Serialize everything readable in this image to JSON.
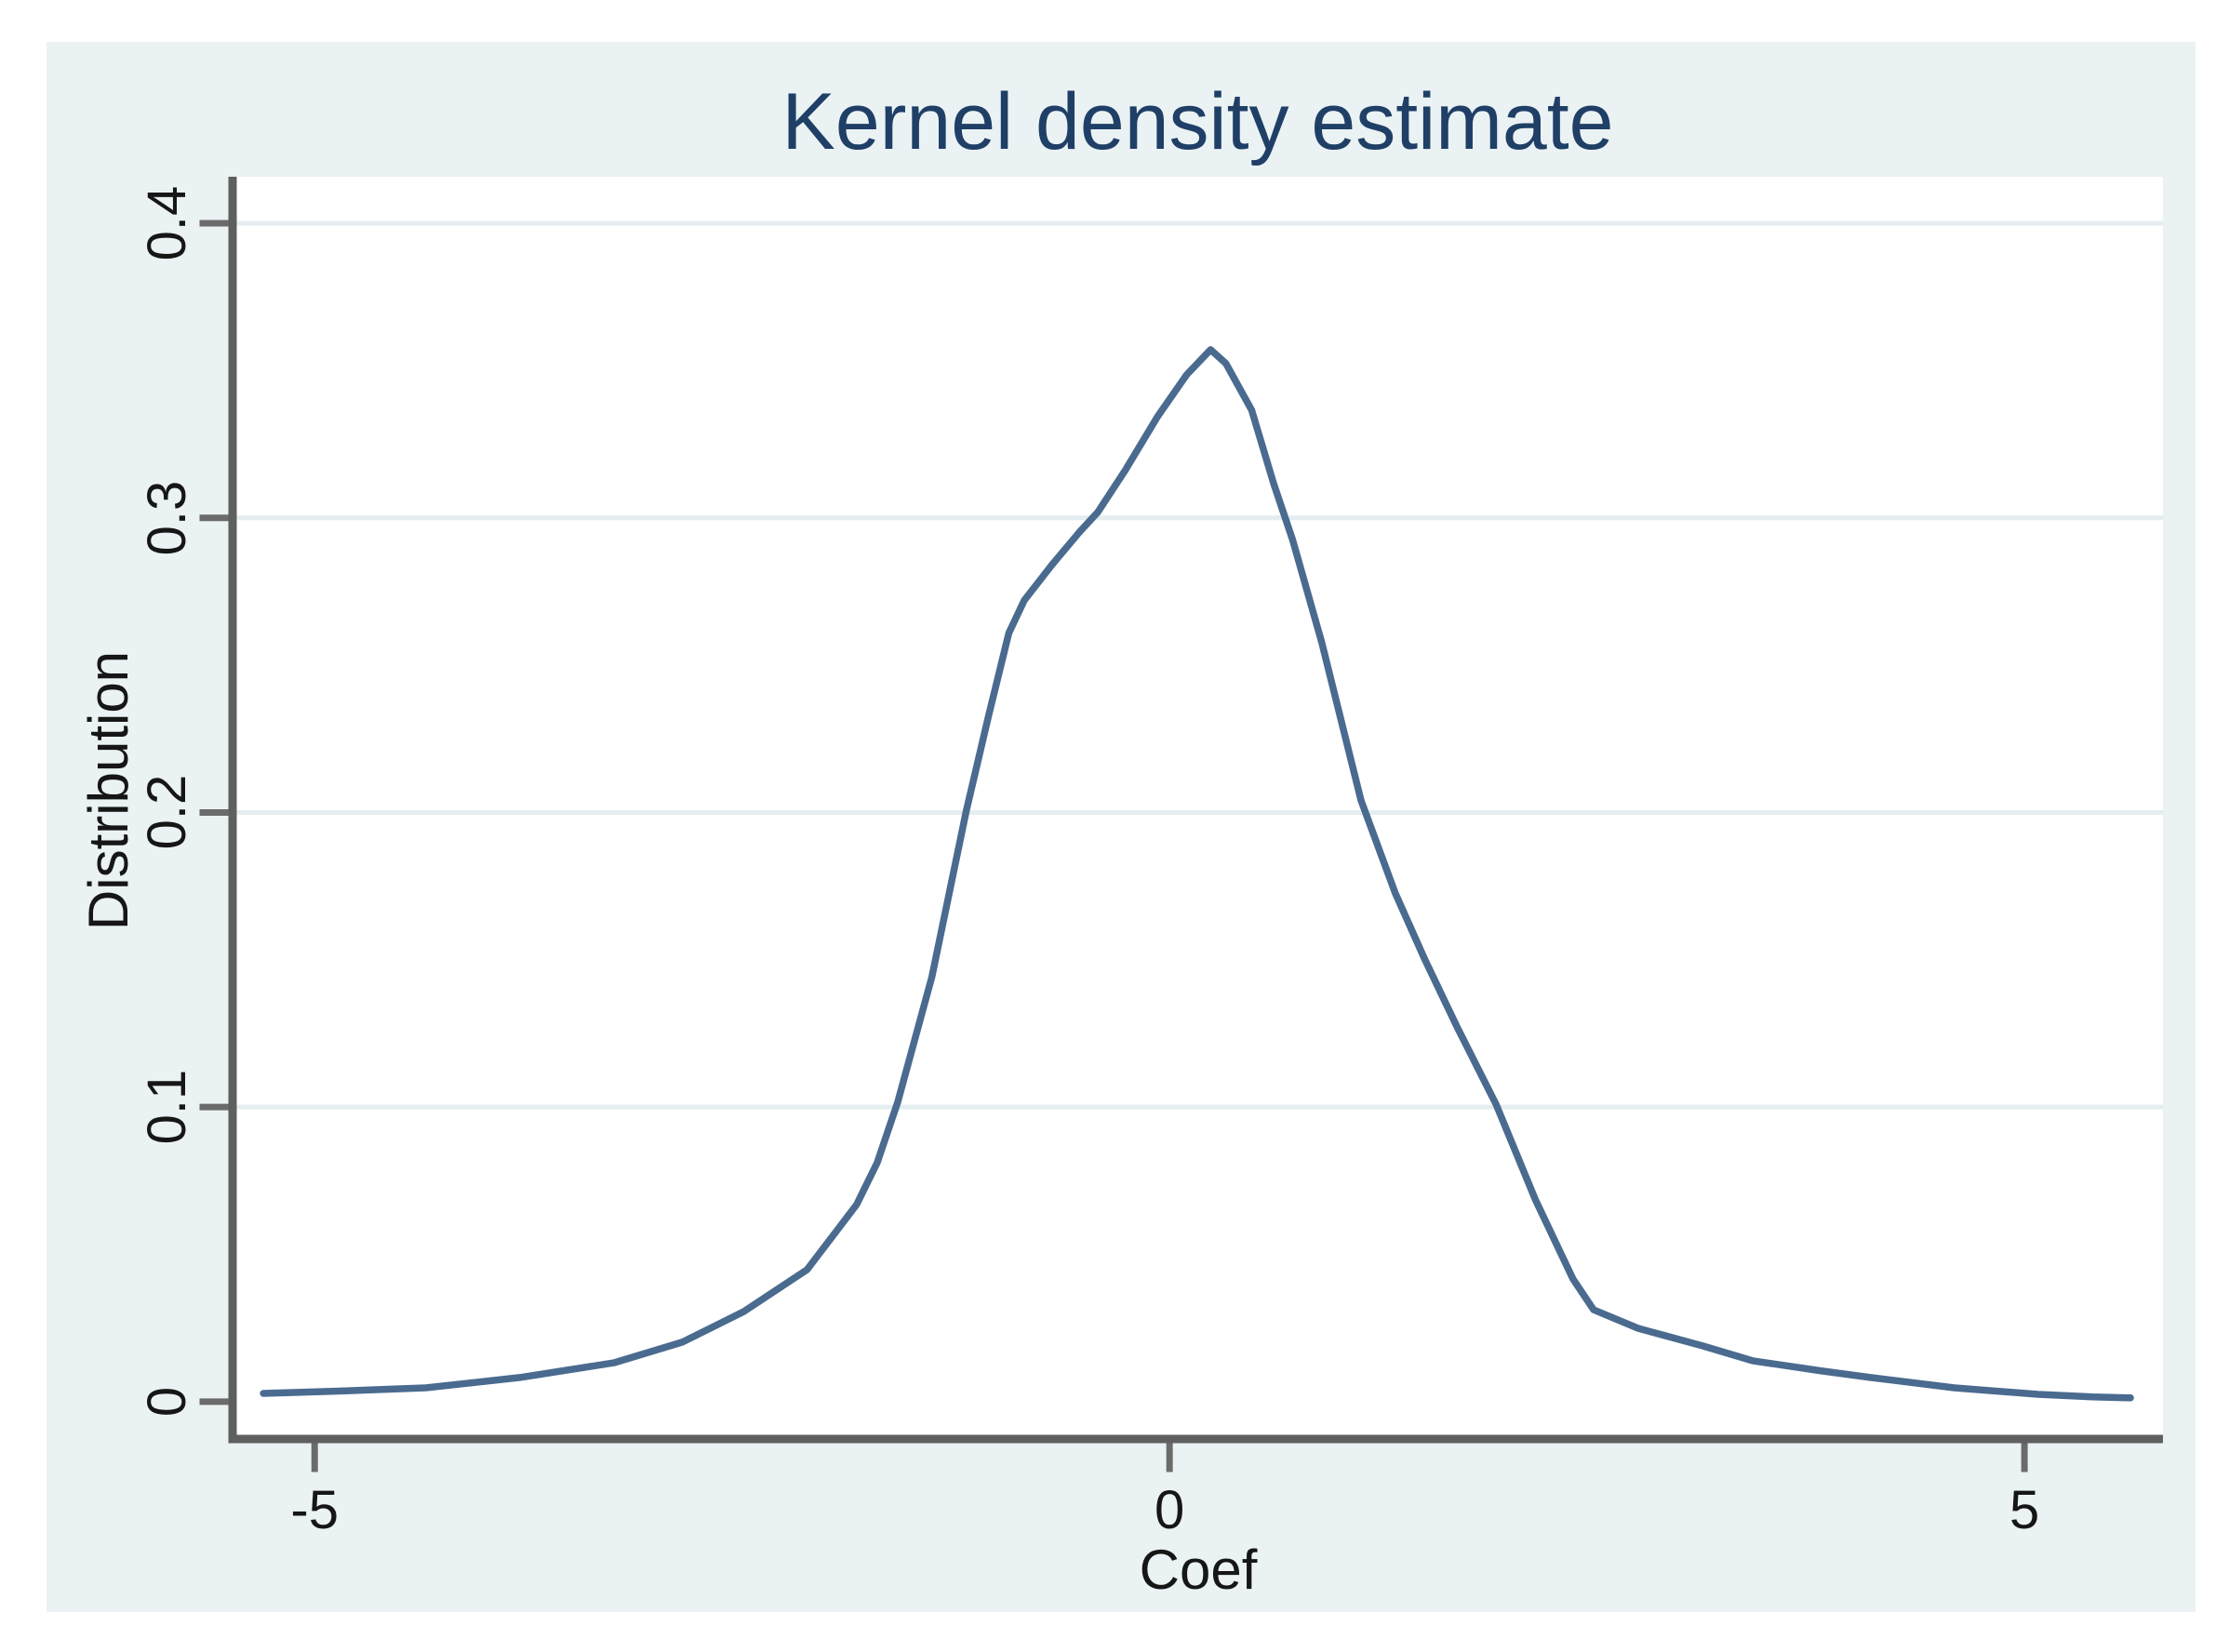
{
  "page": {
    "background_color": "#ffffff",
    "graph_background_color": "#eaf2f3",
    "plot_background_color": "#ffffff"
  },
  "graph": {
    "title": "Kernel density estimate",
    "title_color": "#1f3f66",
    "x_axis": {
      "label": "Coef"
    },
    "y_axis": {
      "label": "Distribution"
    },
    "axis_line_color": "#5f5f5f",
    "tick_color": "#6b6b6b",
    "gridline_color": "#e4edf0",
    "text_color": "#161616"
  },
  "chart_data": {
    "type": "line",
    "title": "Kernel density estimate",
    "xlabel": "Coef",
    "ylabel": "Distribution",
    "x_ticks": [
      -5,
      0,
      5
    ],
    "x_tick_labels": [
      "-5",
      "0",
      "5"
    ],
    "y_ticks": [
      0,
      0.1,
      0.2,
      0.3,
      0.4
    ],
    "y_tick_labels": [
      "0",
      "0.1",
      "0.2",
      "0.3",
      "0.4"
    ],
    "xlim": [
      -5.48,
      5.81
    ],
    "ylim": [
      -0.0114,
      0.4158
    ],
    "grid": {
      "horizontal_at": [
        0.1,
        0.2,
        0.3,
        0.4
      ]
    },
    "legend": "none",
    "series": [
      {
        "color": "#4a6b8f",
        "points": [
          [
            -5.3,
            0.0028
          ],
          [
            -4.9,
            0.0035
          ],
          [
            -4.35,
            0.0047
          ],
          [
            -3.8,
            0.0082
          ],
          [
            -3.25,
            0.0132
          ],
          [
            -2.85,
            0.0202
          ],
          [
            -2.49,
            0.0306
          ],
          [
            -2.12,
            0.0448
          ],
          [
            -1.83,
            0.0669
          ],
          [
            -1.71,
            0.0811
          ],
          [
            -1.59,
            0.1016
          ],
          [
            -1.39,
            0.1442
          ],
          [
            -1.19,
            0.2003
          ],
          [
            -1.06,
            0.2325
          ],
          [
            -0.94,
            0.2609
          ],
          [
            -0.85,
            0.272
          ],
          [
            -0.69,
            0.2839
          ],
          [
            -0.53,
            0.295
          ],
          [
            -0.42,
            0.3019
          ],
          [
            -0.26,
            0.3161
          ],
          [
            -0.07,
            0.3344
          ],
          [
            0.1,
            0.3486
          ],
          [
            0.24,
            0.3571
          ],
          [
            0.33,
            0.3524
          ],
          [
            0.48,
            0.3366
          ],
          [
            0.61,
            0.3114
          ],
          [
            0.72,
            0.2925
          ],
          [
            0.89,
            0.2578
          ],
          [
            1.12,
            0.2041
          ],
          [
            1.32,
            0.1726
          ],
          [
            1.49,
            0.1505
          ],
          [
            1.68,
            0.1274
          ],
          [
            1.91,
            0.1009
          ],
          [
            2.14,
            0.0685
          ],
          [
            2.36,
            0.0416
          ],
          [
            2.48,
            0.0312
          ],
          [
            2.74,
            0.0249
          ],
          [
            3.12,
            0.0189
          ],
          [
            3.41,
            0.0139
          ],
          [
            3.82,
            0.0104
          ],
          [
            4.1,
            0.0082
          ],
          [
            4.59,
            0.0047
          ],
          [
            5.08,
            0.0025
          ],
          [
            5.4,
            0.0016
          ],
          [
            5.62,
            0.0013
          ]
        ]
      }
    ]
  }
}
